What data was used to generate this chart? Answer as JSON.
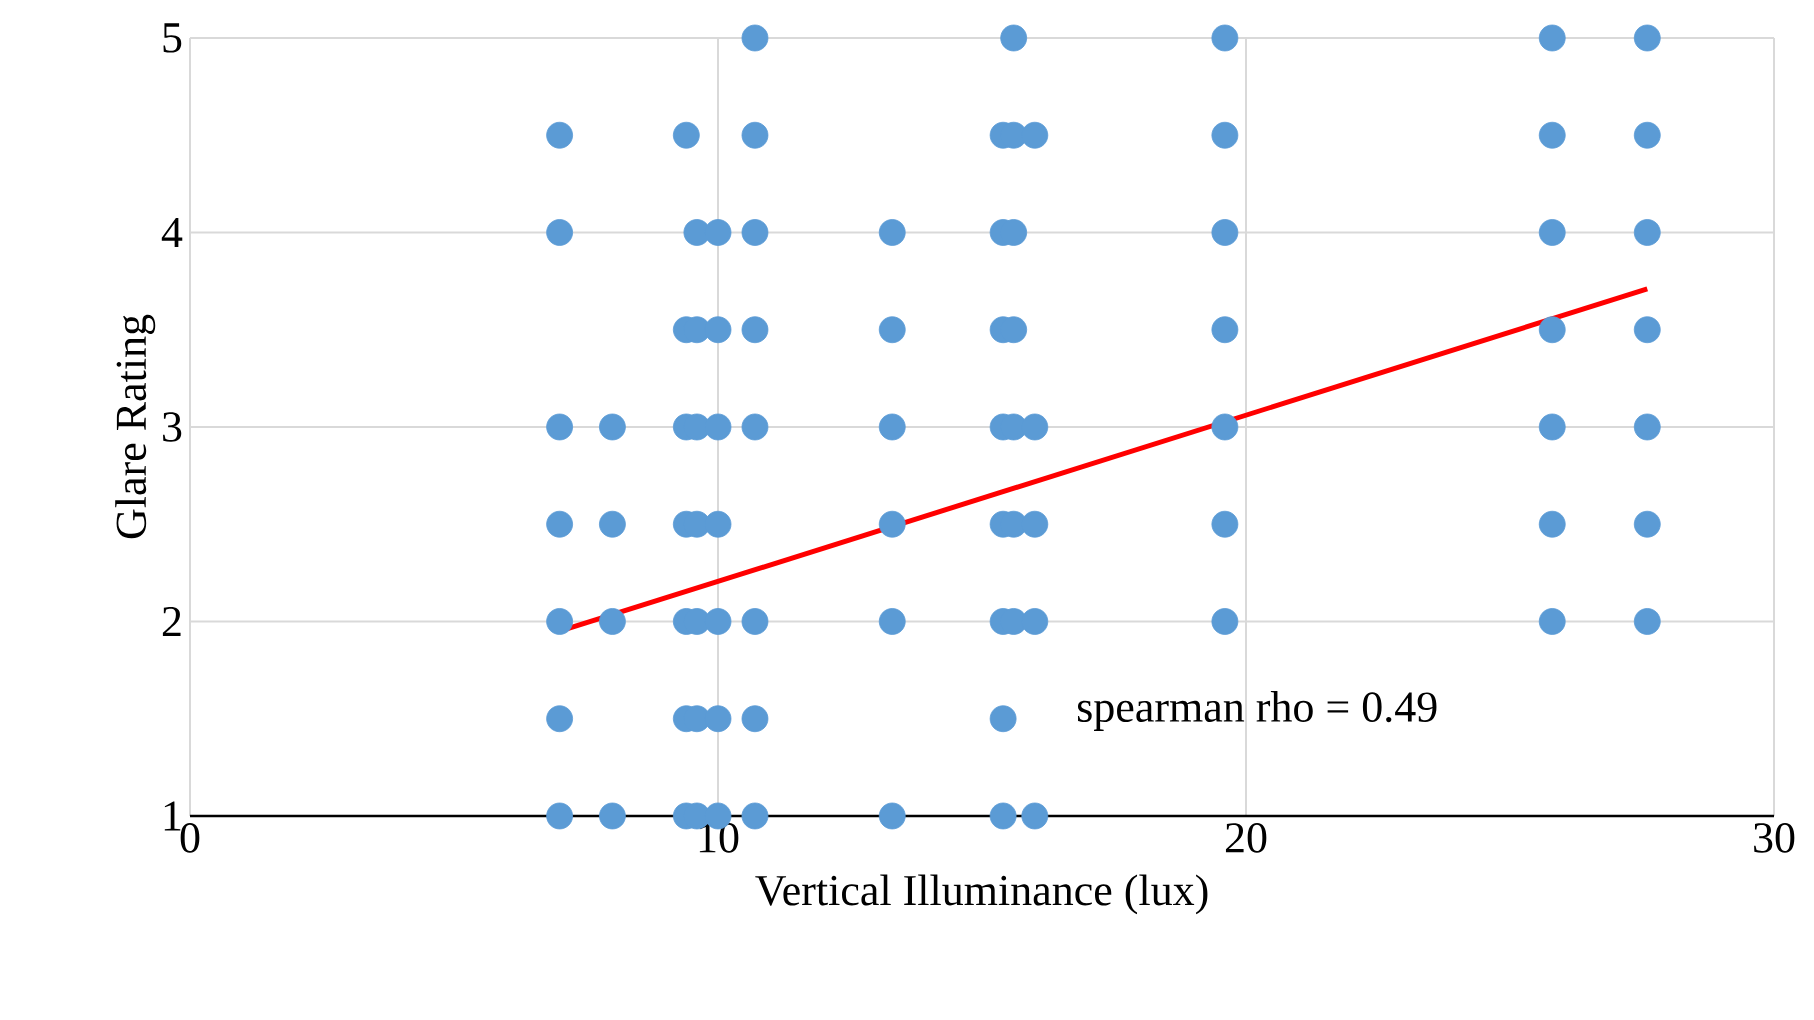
{
  "chart_data": {
    "type": "scatter",
    "xlabel": "Vertical Illuminance (lux)",
    "ylabel": "Glare Rating",
    "xlim": [
      0,
      30
    ],
    "xticks": [
      0,
      10,
      20,
      30
    ],
    "ylim": [
      1,
      5
    ],
    "yticks": [
      1,
      2,
      3,
      4,
      5
    ],
    "grid": true,
    "annotations": [
      "spearman rho = 0.49"
    ],
    "series": [
      {
        "color": "#5b9bd5",
        "marker": "circle",
        "x": [
          7.0,
          7.0,
          7.0,
          7.0,
          7.0,
          7.0,
          7.0,
          8.0,
          8.0,
          8.0,
          8.0,
          9.4,
          9.4,
          9.4,
          9.4,
          9.4,
          9.4,
          9.4,
          9.6,
          9.6,
          9.6,
          9.6,
          9.6,
          9.6,
          9.6,
          10.0,
          10.0,
          10.0,
          10.0,
          10.0,
          10.0,
          10.0,
          10.7,
          10.7,
          10.7,
          10.7,
          10.7,
          10.7,
          10.7,
          10.7,
          13.3,
          13.3,
          13.3,
          13.3,
          13.3,
          13.3,
          15.4,
          15.4,
          15.4,
          15.4,
          15.4,
          15.4,
          15.4,
          15.4,
          15.6,
          15.6,
          15.6,
          15.6,
          15.6,
          15.6,
          15.6,
          16.0,
          16.0,
          16.0,
          16.0,
          16.0,
          19.6,
          19.6,
          19.6,
          19.6,
          19.6,
          19.6,
          19.6,
          25.8,
          25.8,
          25.8,
          25.8,
          25.8,
          25.8,
          25.8,
          27.6,
          27.6,
          27.6,
          27.6,
          27.6,
          27.6,
          27.6
        ],
        "values": [
          4.5,
          4,
          3,
          2.5,
          2,
          1.5,
          1,
          3,
          2.5,
          2,
          1,
          4.5,
          3.5,
          3,
          2.5,
          2,
          1.5,
          1,
          4,
          3.5,
          3,
          2.5,
          2,
          1.5,
          1,
          4,
          3.5,
          3,
          2.5,
          2,
          1.5,
          1,
          5,
          4.5,
          4,
          3.5,
          3,
          2,
          1.5,
          1,
          4,
          3.5,
          3,
          2.5,
          2,
          1,
          4.5,
          4,
          3.5,
          3,
          2.5,
          2,
          1.5,
          1,
          5,
          4.5,
          4,
          3.5,
          3,
          2.5,
          2,
          4.5,
          3,
          2.5,
          2,
          1,
          5,
          4.5,
          4,
          3.5,
          3,
          2.5,
          2,
          5,
          4.5,
          4,
          3.5,
          3,
          2.5,
          2,
          5,
          4.5,
          4,
          3.5,
          3,
          2.5,
          2
        ]
      },
      {
        "type": "line",
        "color": "#ff0000",
        "marker": "none",
        "x": [
          7.0,
          27.6
        ],
        "values": [
          1.95,
          3.71
        ]
      }
    ]
  }
}
